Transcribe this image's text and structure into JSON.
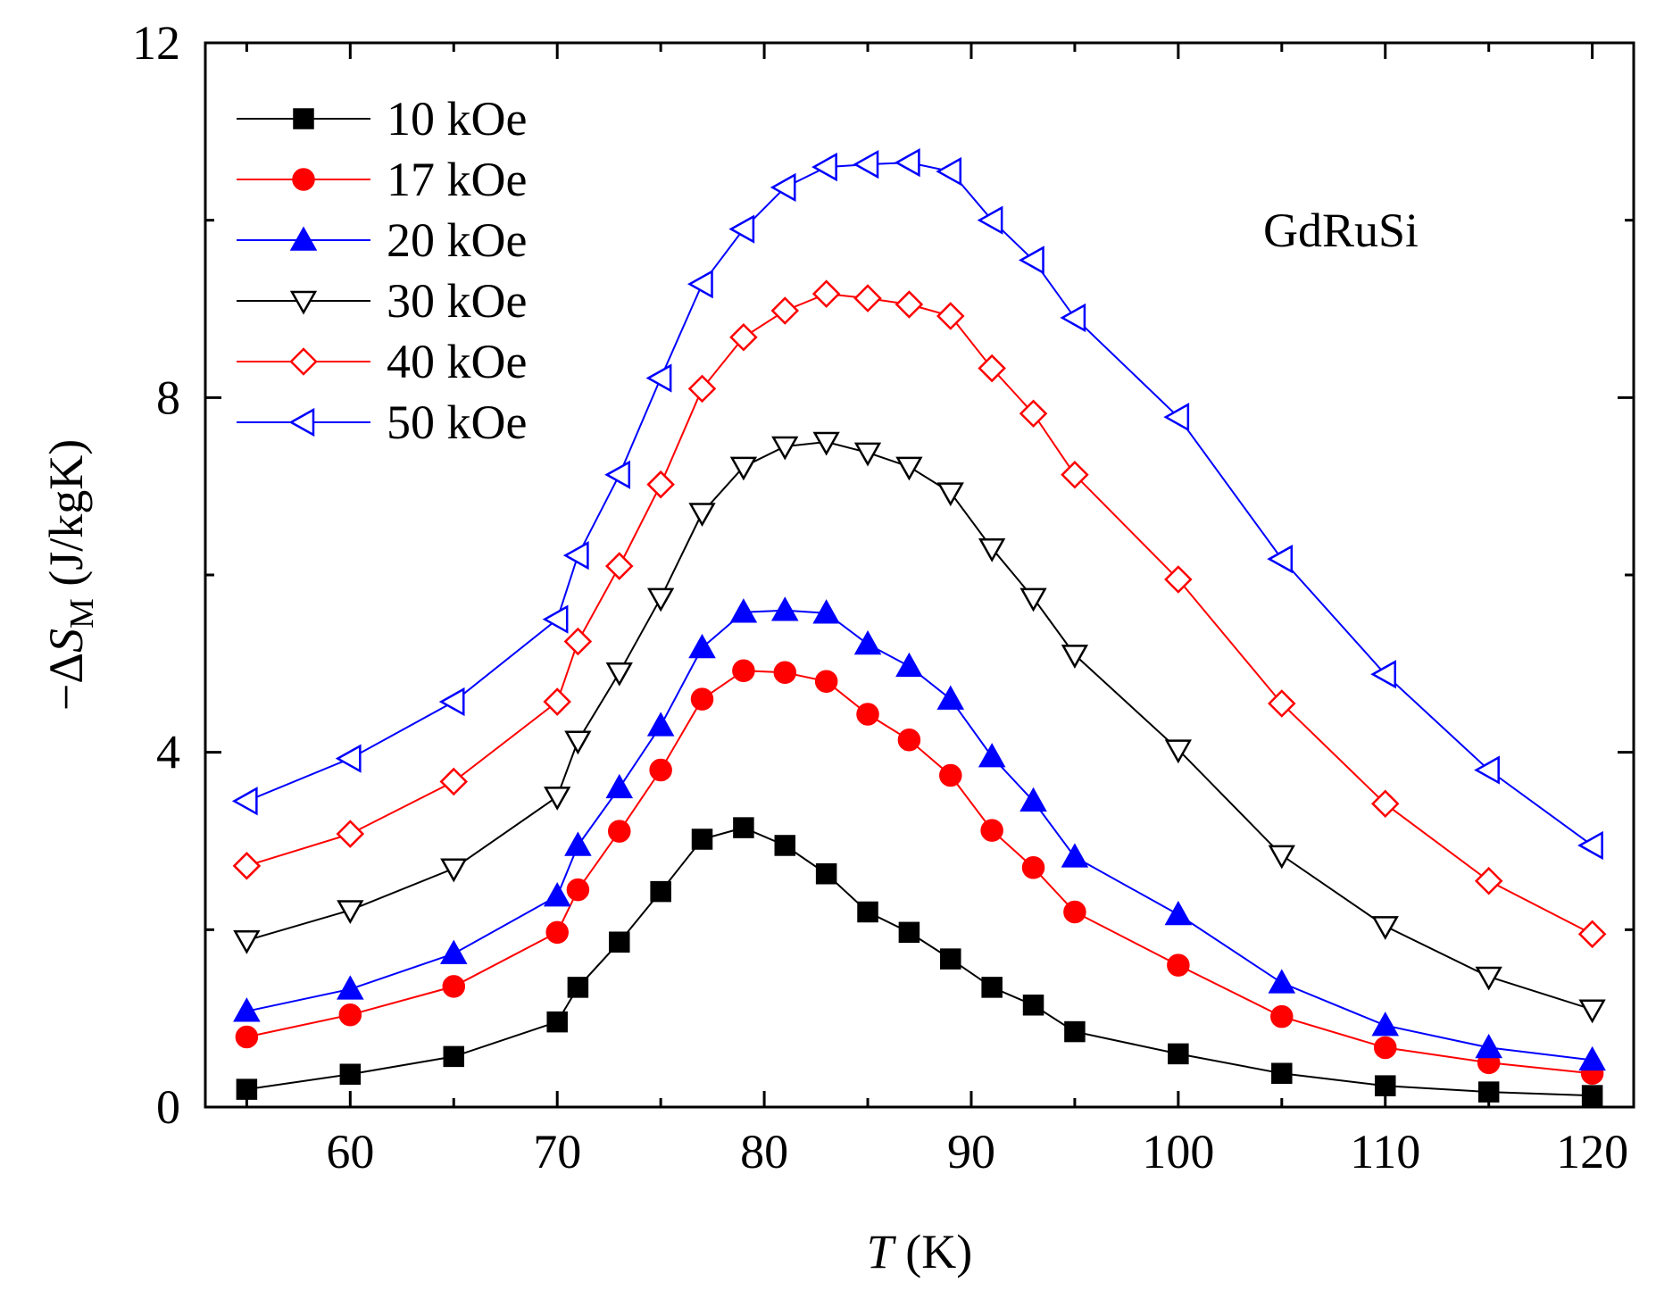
{
  "chart_data": {
    "type": "line",
    "annotation": "GdRuSi",
    "xlabel": {
      "var": "T",
      "unit": " (K)"
    },
    "ylabel": {
      "prefix": "−Δ",
      "var": "S",
      "sub": "M",
      "unit": " (J/kgK)"
    },
    "xlim": [
      53,
      122
    ],
    "ylim": [
      0,
      12
    ],
    "xticks": [
      60,
      70,
      80,
      90,
      100,
      110,
      120
    ],
    "yticks": [
      0,
      4,
      8,
      12
    ],
    "xticks_minor": [
      55,
      65,
      75,
      85,
      95,
      105,
      115
    ],
    "yticks_minor": [
      2,
      6,
      10
    ],
    "legend_position": "top-left",
    "x": [
      55,
      60,
      65,
      70,
      71,
      73,
      75,
      77,
      79,
      81,
      83,
      85,
      87,
      89,
      91,
      93,
      95,
      100,
      105,
      110,
      115,
      120
    ],
    "series": [
      {
        "name": "10 kOe",
        "color": "#000000",
        "marker": "square",
        "filled": true,
        "values": [
          0.2,
          0.37,
          0.57,
          0.96,
          1.35,
          1.86,
          2.43,
          3.02,
          3.15,
          2.95,
          2.63,
          2.2,
          1.97,
          1.67,
          1.35,
          1.15,
          0.85,
          0.6,
          0.38,
          0.24,
          0.17,
          0.13
        ]
      },
      {
        "name": "17 kOe",
        "color": "#ff0000",
        "marker": "circle",
        "filled": true,
        "values": [
          0.79,
          1.04,
          1.36,
          1.97,
          2.45,
          3.11,
          3.8,
          4.6,
          4.92,
          4.9,
          4.8,
          4.43,
          4.14,
          3.74,
          3.12,
          2.7,
          2.2,
          1.6,
          1.02,
          0.67,
          0.5,
          0.38
        ]
      },
      {
        "name": "20 kOe",
        "color": "#0000ff",
        "marker": "triangle-up",
        "filled": true,
        "values": [
          1.08,
          1.33,
          1.73,
          2.38,
          2.95,
          3.6,
          4.3,
          5.18,
          5.58,
          5.6,
          5.57,
          5.22,
          4.97,
          4.6,
          3.95,
          3.45,
          2.82,
          2.17,
          1.4,
          0.92,
          0.67,
          0.53
        ]
      },
      {
        "name": "30 kOe",
        "color": "#000000",
        "marker": "triangle-down",
        "filled": false,
        "values": [
          1.88,
          2.22,
          2.69,
          3.5,
          4.13,
          4.9,
          5.74,
          6.7,
          7.22,
          7.45,
          7.5,
          7.38,
          7.22,
          6.93,
          6.3,
          5.74,
          5.1,
          4.03,
          2.84,
          2.04,
          1.47,
          1.1
        ]
      },
      {
        "name": "40 kOe",
        "color": "#ff0000",
        "marker": "diamond",
        "filled": false,
        "values": [
          2.72,
          3.08,
          3.67,
          4.57,
          5.25,
          6.1,
          7.02,
          8.1,
          8.68,
          8.98,
          9.17,
          9.12,
          9.05,
          8.92,
          8.33,
          7.82,
          7.13,
          5.95,
          4.55,
          3.42,
          2.55,
          1.95
        ]
      },
      {
        "name": "50 kOe",
        "color": "#0000ff",
        "marker": "triangle-left",
        "filled": false,
        "values": [
          3.45,
          3.93,
          4.57,
          5.5,
          6.22,
          7.13,
          8.22,
          9.28,
          9.9,
          10.37,
          10.6,
          10.63,
          10.65,
          10.55,
          10.0,
          9.55,
          8.9,
          7.78,
          6.18,
          4.88,
          3.8,
          2.95
        ]
      }
    ]
  }
}
